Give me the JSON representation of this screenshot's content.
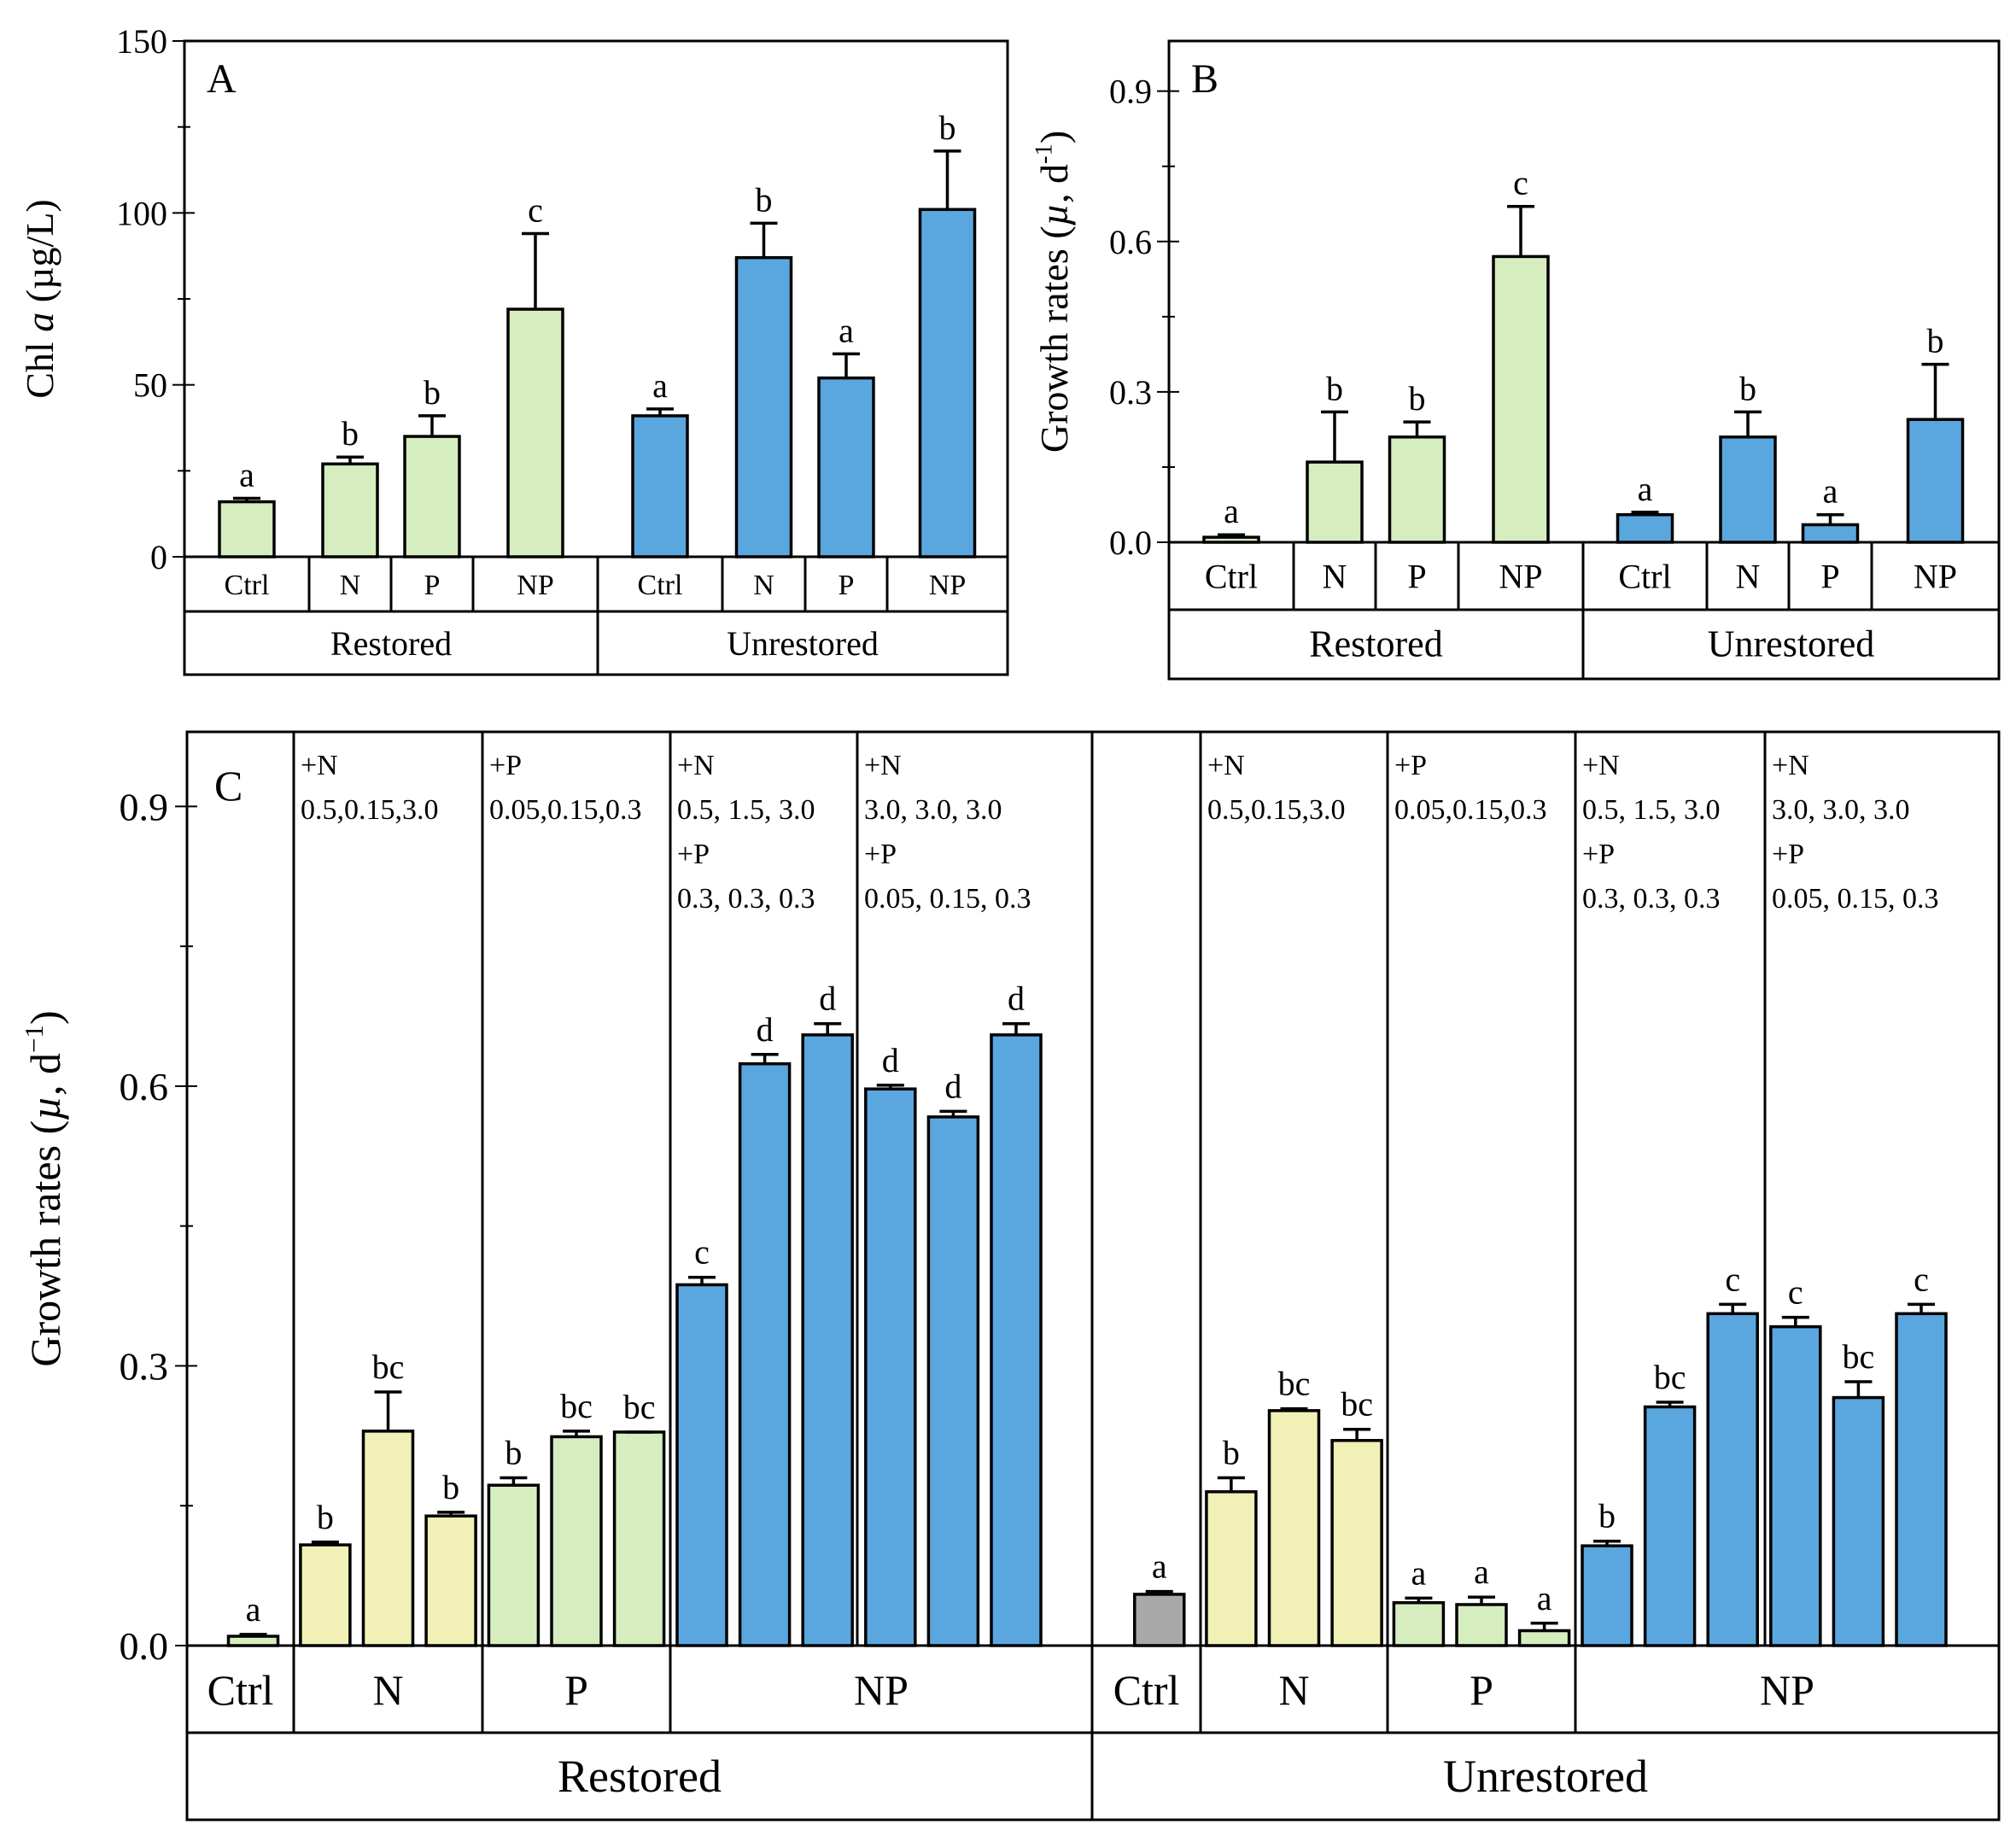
{
  "colors": {
    "restored": "#d6edbf",
    "unrestored": "#5aa7df",
    "n_only": "#f1f0b6",
    "p_only": "#d6edbf",
    "np": "#5aa7df",
    "ctrl_restored": "#d6edbf",
    "ctrl_unrestored": "#a8a8a8"
  },
  "chart_data": [
    {
      "panel": "A",
      "type": "bar",
      "ylabel_prefix": "Chl ",
      "ylabel_italic": "a",
      "ylabel_suffix": " (µg/L)",
      "ylim": [
        0,
        150
      ],
      "yticks": [
        "0",
        "50",
        "100",
        "150"
      ],
      "groups": [
        {
          "label": "Restored",
          "categories": [
            "Ctrl",
            "N",
            "P",
            "NP"
          ],
          "values": [
            16,
            27,
            35,
            72
          ],
          "errors": [
            1,
            2,
            6,
            22
          ],
          "letters": [
            "a",
            "b",
            "b",
            "c"
          ],
          "color": "restored"
        },
        {
          "label": "Unrestored",
          "categories": [
            "Ctrl",
            "N",
            "P",
            "NP"
          ],
          "values": [
            41,
            87,
            52,
            101
          ],
          "errors": [
            2,
            10,
            7,
            17
          ],
          "letters": [
            "a",
            "b",
            "a",
            "b"
          ],
          "color": "unrestored"
        }
      ]
    },
    {
      "panel": "B",
      "type": "bar",
      "ylabel_prefix": "Growth rates (",
      "ylabel_italic": "µ",
      "ylabel_suffix": ", d",
      "ylabel_sup": "-1",
      "ylabel_end": ")",
      "ylim": [
        0,
        1.0
      ],
      "yticks": [
        "0.0",
        "0.3",
        "0.6",
        "0.9"
      ],
      "groups": [
        {
          "label": "Restored",
          "categories": [
            "Ctrl",
            "N",
            "P",
            "NP"
          ],
          "values": [
            0.01,
            0.16,
            0.21,
            0.57
          ],
          "errors": [
            0.005,
            0.1,
            0.03,
            0.1
          ],
          "letters": [
            "a",
            "b",
            "b",
            "c"
          ],
          "color": "restored"
        },
        {
          "label": "Unrestored",
          "categories": [
            "Ctrl",
            "N",
            "P",
            "NP"
          ],
          "values": [
            0.055,
            0.21,
            0.035,
            0.245
          ],
          "errors": [
            0.005,
            0.05,
            0.02,
            0.11
          ],
          "letters": [
            "a",
            "b",
            "a",
            "b"
          ],
          "color": "unrestored"
        }
      ]
    },
    {
      "panel": "C",
      "type": "bar",
      "ylabel_prefix": "Growth rates (",
      "ylabel_italic": "µ",
      "ylabel_suffix": ", d",
      "ylabel_sup": "−1",
      "ylabel_end": ")",
      "ylim": [
        0,
        0.98
      ],
      "yticks": [
        "0.0",
        "0.3",
        "0.6",
        "0.9"
      ],
      "groups": [
        {
          "label": "Restored",
          "sections": [
            {
              "label": "Ctrl",
              "values": [
                0.01
              ],
              "errors": [
                0.002
              ],
              "letters": [
                "a"
              ],
              "colors": [
                "ctrl_restored"
              ],
              "notes": []
            },
            {
              "label": "N",
              "values": [
                0.108,
                0.23,
                0.139
              ],
              "errors": [
                0.003,
                0.042,
                0.004
              ],
              "letters": [
                "b",
                "bc",
                "b"
              ],
              "colors": [
                "n_only",
                "n_only",
                "n_only"
              ],
              "notes": [
                "+N",
                "0.5,0.15,3.0"
              ]
            },
            {
              "label": "P",
              "values": [
                0.172,
                0.224,
                0.229
              ],
              "errors": [
                0.008,
                0.006,
                0.0
              ],
              "letters": [
                "b",
                "bc",
                "bc"
              ],
              "colors": [
                "p_only",
                "p_only",
                "p_only"
              ],
              "notes": [
                "+P",
                "0.05,0.15,0.3"
              ]
            },
            {
              "label": "NP",
              "values": [
                0.387,
                0.624,
                0.655,
                0.597,
                0.567,
                0.655
              ],
              "errors": [
                0.008,
                0.01,
                0.012,
                0.004,
                0.006,
                0.012
              ],
              "letters": [
                "c",
                "d",
                "d",
                "d",
                "d",
                "d"
              ],
              "colors": [
                "np",
                "np",
                "np",
                "np",
                "np",
                "np"
              ],
              "notes": [
                "+N",
                "0.5, 1.5, 3.0",
                "+P",
                "0.3, 0.3, 0.3"
              ],
              "notes2": [
                "+N",
                "3.0,  3.0,  3.0",
                "+P",
                "0.05, 0.15, 0.3"
              ]
            }
          ]
        },
        {
          "label": "Unrestored",
          "sections": [
            {
              "label": "Ctrl",
              "values": [
                0.055
              ],
              "errors": [
                0.003
              ],
              "letters": [
                "a"
              ],
              "colors": [
                "ctrl_unrestored"
              ],
              "notes": []
            },
            {
              "label": "N",
              "values": [
                0.165,
                0.252,
                0.22
              ],
              "errors": [
                0.015,
                0.002,
                0.012
              ],
              "letters": [
                "b",
                "bc",
                "bc"
              ],
              "colors": [
                "n_only",
                "n_only",
                "n_only"
              ],
              "notes": [
                "+N",
                "0.5,0.15,3.0"
              ]
            },
            {
              "label": "P",
              "values": [
                0.046,
                0.044,
                0.016
              ],
              "errors": [
                0.005,
                0.008,
                0.008
              ],
              "letters": [
                "a",
                "a",
                "a"
              ],
              "colors": [
                "p_only",
                "p_only",
                "p_only"
              ],
              "notes": [
                "+P",
                "0.05,0.15,0.3"
              ]
            },
            {
              "label": "NP",
              "values": [
                0.107,
                0.256,
                0.356,
                0.342,
                0.266,
                0.356
              ],
              "errors": [
                0.005,
                0.005,
                0.01,
                0.01,
                0.017,
                0.01
              ],
              "letters": [
                "b",
                "bc",
                "c",
                "c",
                "bc",
                "c"
              ],
              "colors": [
                "np",
                "np",
                "np",
                "np",
                "np",
                "np"
              ],
              "notes": [
                "+N",
                "0.5, 1.5, 3.0",
                "+P",
                "0.3, 0.3, 0.3"
              ],
              "notes2": [
                "+N",
                "3.0,  3.0,  3.0",
                "+P",
                "0.05, 0.15, 0.3"
              ]
            }
          ]
        }
      ]
    }
  ]
}
